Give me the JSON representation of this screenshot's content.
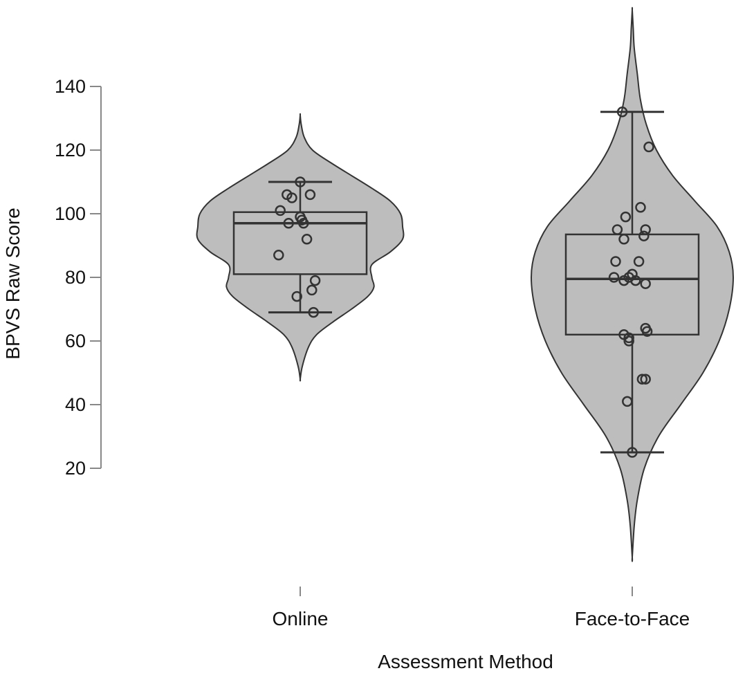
{
  "chart_data": {
    "type": "violin",
    "title": "",
    "xlabel": "Assessment Method",
    "ylabel": "BPVS Raw Score",
    "ylim": [
      20,
      140
    ],
    "yticks": [
      20,
      40,
      60,
      80,
      100,
      120,
      140
    ],
    "grid": false,
    "colors": {
      "violin_fill": "#bdbdbd",
      "violin_stroke": "#333333",
      "box_stroke": "#333333",
      "point_stroke": "#333333"
    },
    "categories": [
      "Online",
      "Face-to-Face"
    ],
    "groups": [
      {
        "name": "Online",
        "box": {
          "whisker_low": 69,
          "q1": 81,
          "median": 97,
          "q3": 100.5,
          "whisker_high": 110
        },
        "violin_range": [
          48,
          131
        ],
        "density_profile": [
          [
            48,
            0.0
          ],
          [
            52,
            0.02
          ],
          [
            58,
            0.08
          ],
          [
            62,
            0.16
          ],
          [
            66,
            0.32
          ],
          [
            70,
            0.5
          ],
          [
            74,
            0.66
          ],
          [
            77,
            0.72
          ],
          [
            80,
            0.7
          ],
          [
            84,
            0.7
          ],
          [
            88,
            0.88
          ],
          [
            92,
            1.0
          ],
          [
            96,
            1.0
          ],
          [
            100,
            0.98
          ],
          [
            104,
            0.88
          ],
          [
            108,
            0.7
          ],
          [
            112,
            0.5
          ],
          [
            116,
            0.3
          ],
          [
            120,
            0.12
          ],
          [
            124,
            0.04
          ],
          [
            128,
            0.01
          ],
          [
            131,
            0.0
          ]
        ],
        "points": [
          {
            "offset": 0.0,
            "y": 110
          },
          {
            "offset": -0.08,
            "y": 106
          },
          {
            "offset": 0.06,
            "y": 106
          },
          {
            "offset": -0.05,
            "y": 105
          },
          {
            "offset": -0.12,
            "y": 101
          },
          {
            "offset": 0.0,
            "y": 99
          },
          {
            "offset": 0.01,
            "y": 98
          },
          {
            "offset": -0.07,
            "y": 97
          },
          {
            "offset": 0.02,
            "y": 97
          },
          {
            "offset": 0.04,
            "y": 92
          },
          {
            "offset": -0.13,
            "y": 87
          },
          {
            "offset": 0.09,
            "y": 79
          },
          {
            "offset": 0.07,
            "y": 76
          },
          {
            "offset": -0.02,
            "y": 74
          },
          {
            "offset": 0.08,
            "y": 69
          }
        ]
      },
      {
        "name": "Face-to-Face",
        "box": {
          "whisker_low": 25,
          "q1": 62,
          "median": 79.5,
          "q3": 93.5,
          "whisker_high": 132
        },
        "violin_range": [
          -8,
          164
        ],
        "density_profile": [
          [
            -8,
            0.0
          ],
          [
            2,
            0.02
          ],
          [
            10,
            0.05
          ],
          [
            20,
            0.12
          ],
          [
            30,
            0.26
          ],
          [
            40,
            0.48
          ],
          [
            50,
            0.7
          ],
          [
            60,
            0.86
          ],
          [
            70,
            0.96
          ],
          [
            80,
            1.0
          ],
          [
            88,
            0.96
          ],
          [
            96,
            0.84
          ],
          [
            104,
            0.62
          ],
          [
            112,
            0.4
          ],
          [
            120,
            0.24
          ],
          [
            128,
            0.14
          ],
          [
            136,
            0.08
          ],
          [
            144,
            0.05
          ],
          [
            152,
            0.02
          ],
          [
            158,
            0.01
          ],
          [
            164,
            0.0
          ]
        ],
        "points": [
          {
            "offset": -0.06,
            "y": 132
          },
          {
            "offset": 0.1,
            "y": 121
          },
          {
            "offset": 0.05,
            "y": 102
          },
          {
            "offset": -0.04,
            "y": 99
          },
          {
            "offset": -0.09,
            "y": 95
          },
          {
            "offset": 0.08,
            "y": 95
          },
          {
            "offset": 0.07,
            "y": 93
          },
          {
            "offset": -0.05,
            "y": 92
          },
          {
            "offset": -0.1,
            "y": 85
          },
          {
            "offset": 0.04,
            "y": 85
          },
          {
            "offset": 0.0,
            "y": 81
          },
          {
            "offset": -0.11,
            "y": 80
          },
          {
            "offset": -0.02,
            "y": 80
          },
          {
            "offset": -0.05,
            "y": 79
          },
          {
            "offset": 0.02,
            "y": 79
          },
          {
            "offset": 0.08,
            "y": 78
          },
          {
            "offset": 0.08,
            "y": 64
          },
          {
            "offset": 0.09,
            "y": 63
          },
          {
            "offset": -0.05,
            "y": 62
          },
          {
            "offset": -0.02,
            "y": 61
          },
          {
            "offset": -0.02,
            "y": 60
          },
          {
            "offset": 0.06,
            "y": 48
          },
          {
            "offset": 0.08,
            "y": 48
          },
          {
            "offset": -0.03,
            "y": 41
          },
          {
            "offset": 0.0,
            "y": 25
          }
        ]
      }
    ]
  }
}
